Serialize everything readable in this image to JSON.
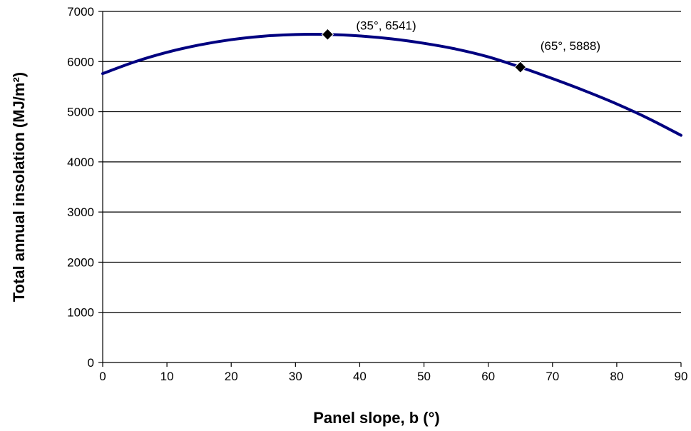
{
  "chart_data": {
    "type": "line",
    "title": "",
    "xlabel": "Panel slope, b (°)",
    "ylabel": "Total annual insolation (MJ/m²)",
    "xlim": [
      0,
      90
    ],
    "ylim": [
      0,
      7000
    ],
    "xticks": [
      0,
      10,
      20,
      30,
      40,
      50,
      60,
      70,
      80,
      90
    ],
    "yticks": [
      0,
      1000,
      2000,
      3000,
      4000,
      5000,
      6000,
      7000
    ],
    "grid": "horizontal",
    "series": [
      {
        "color": "#000080",
        "x": [
          0,
          5,
          10,
          15,
          20,
          25,
          30,
          35,
          40,
          45,
          50,
          55,
          60,
          65,
          70,
          75,
          80,
          85,
          90
        ],
        "y": [
          5760,
          5995,
          6184,
          6330,
          6437,
          6506,
          6540,
          6541,
          6511,
          6452,
          6364,
          6249,
          6094,
          5888,
          5660,
          5418,
          5155,
          4860,
          4530
        ]
      }
    ],
    "markers": [
      {
        "x": 35,
        "y": 6541,
        "label": "(35°, 6541)"
      },
      {
        "x": 65,
        "y": 5888,
        "label": "(65°, 5888)"
      }
    ]
  }
}
